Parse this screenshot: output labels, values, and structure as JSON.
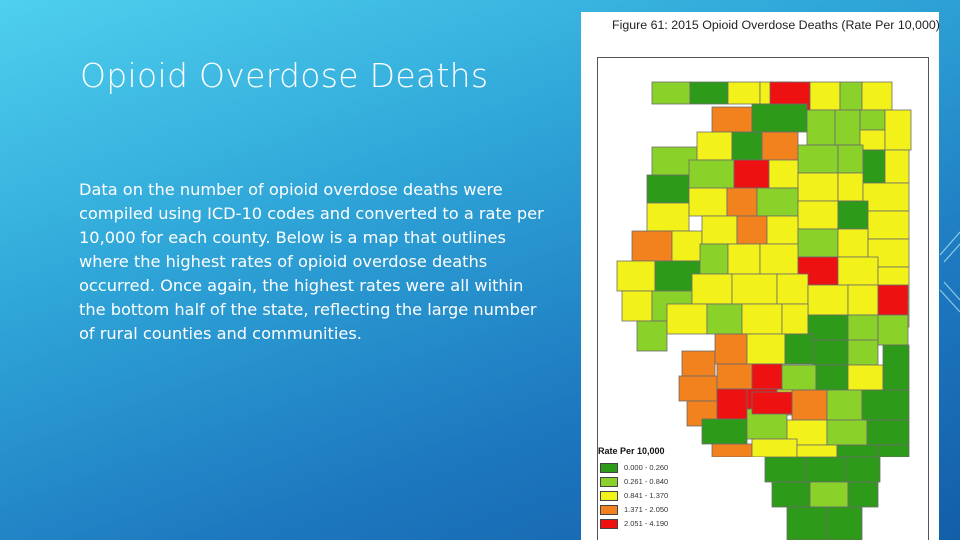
{
  "slide": {
    "title": "Opioid Overdose Deaths",
    "body": "Data on the number of opioid overdose deaths were compiled using ICD-10 codes and converted to a rate per 10,000 for each county. Below is a map that outlines where the highest rates of opioid overdose deaths occurred. Once again, the highest rates were all within the bottom half of the state, reflecting the large number of rural counties and communities."
  },
  "figure": {
    "caption": "Figure 61: 2015 Opioid Overdose Deaths (Rate Per 10,000)",
    "legend_title": "Rate Per 10,000",
    "legend": [
      {
        "label": "0.000 - 0.260",
        "color": "#2e9a1a"
      },
      {
        "label": "0.261 - 0.840",
        "color": "#8ad12a"
      },
      {
        "label": "0.841 - 1.370",
        "color": "#f2f21a"
      },
      {
        "label": "1.371 - 2.050",
        "color": "#f2821e"
      },
      {
        "label": "2.051 - 4.190",
        "color": "#ee1111"
      }
    ]
  }
}
